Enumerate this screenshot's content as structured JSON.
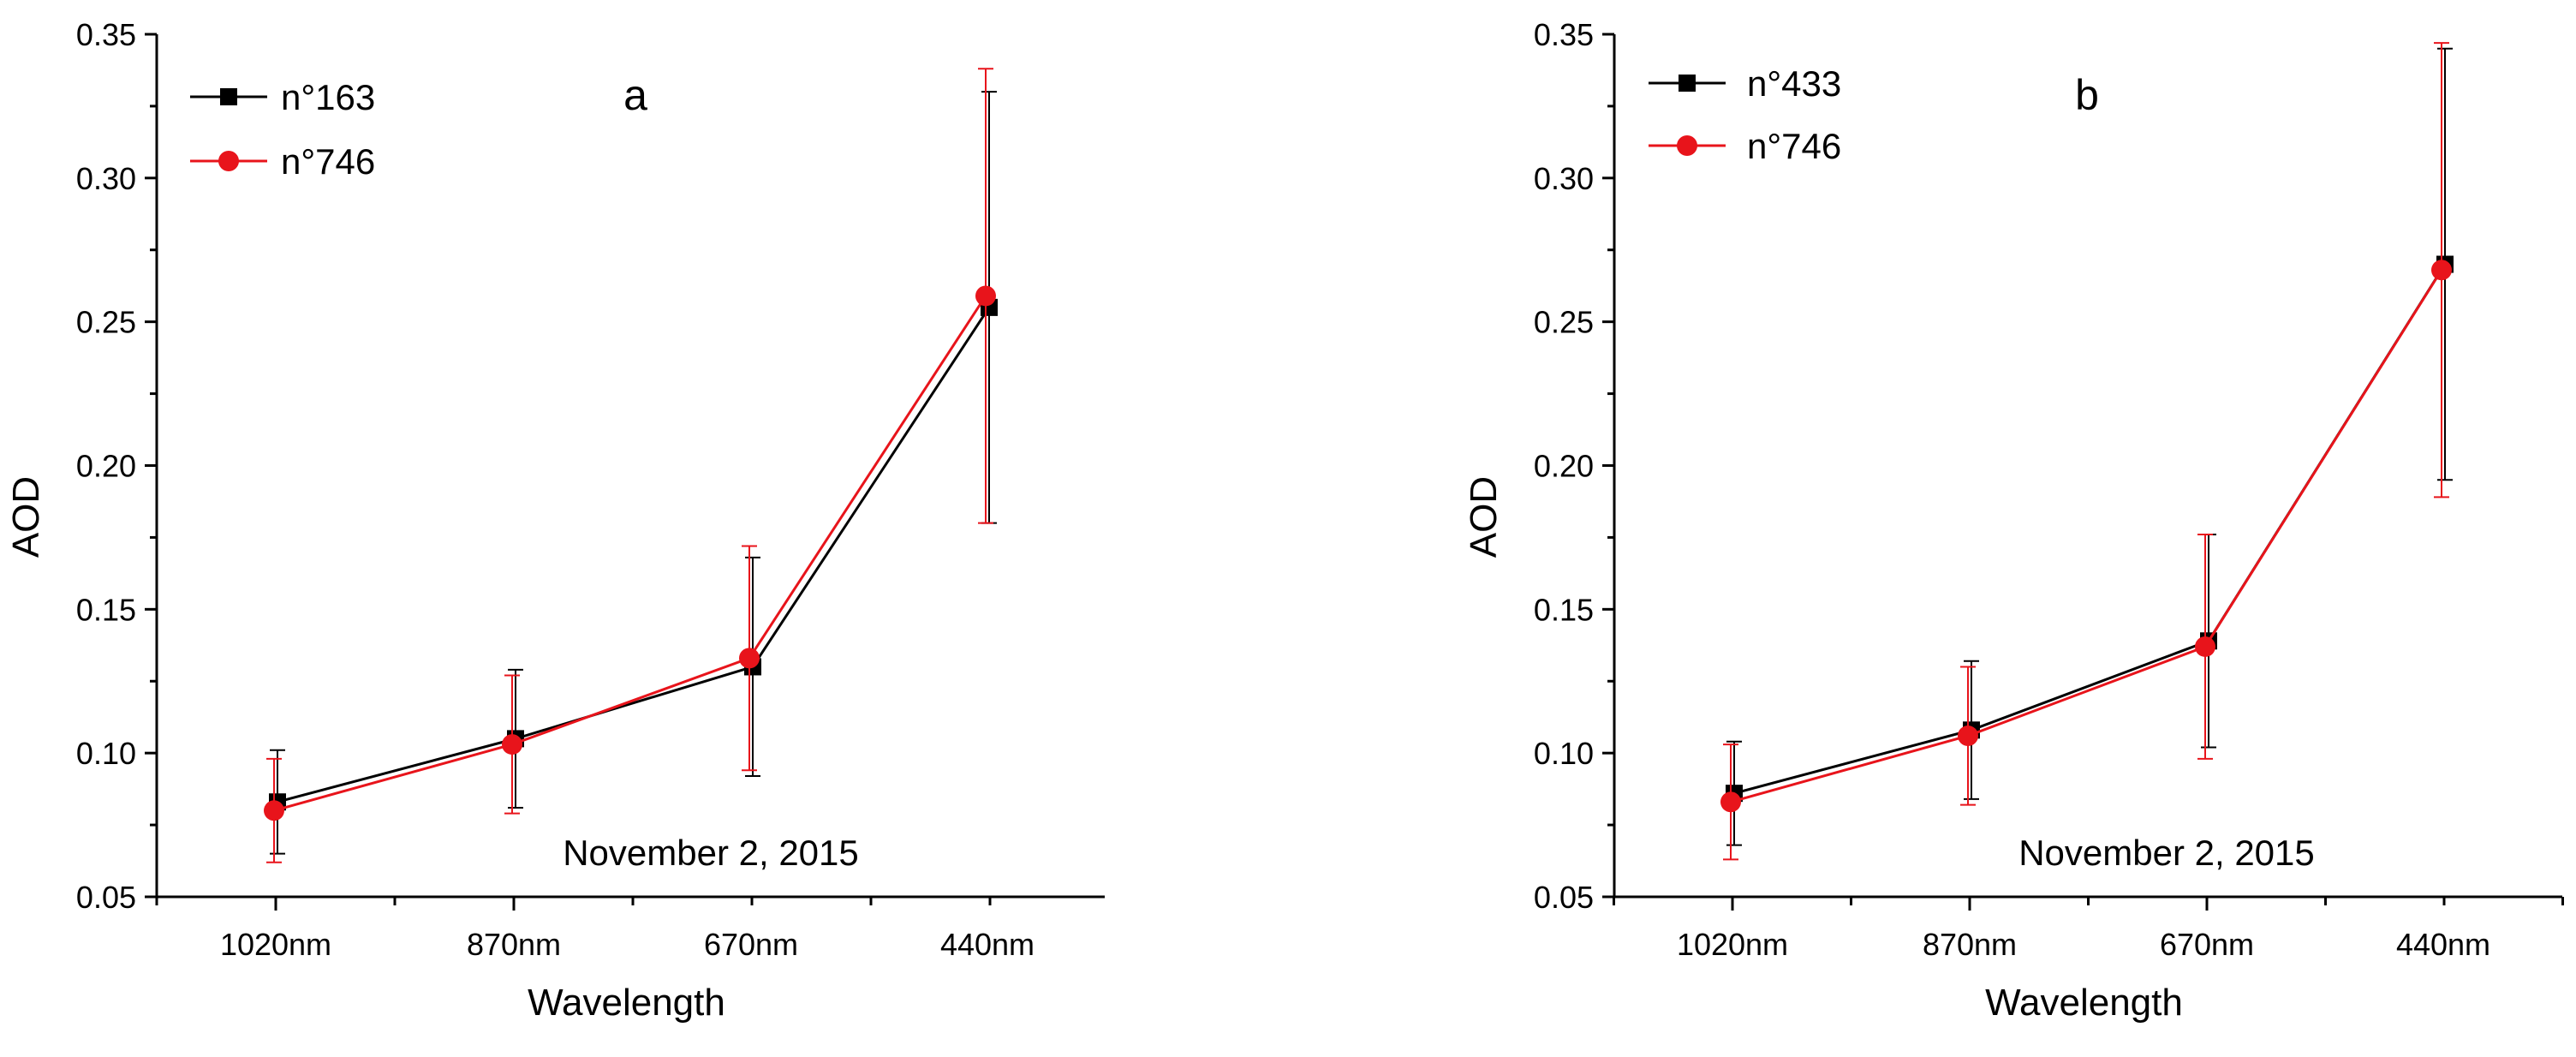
{
  "chart_data": [
    {
      "type": "line",
      "panel_label": "a",
      "annotation": "November 2, 2015",
      "xlabel": "Wavelength",
      "ylabel": "AOD",
      "categories": [
        "1020nm",
        "870nm",
        "670nm",
        "440nm"
      ],
      "ylim": [
        0.05,
        0.35
      ],
      "yticks": [
        "0.05",
        "0.10",
        "0.15",
        "0.20",
        "0.25",
        "0.30",
        "0.35"
      ],
      "legend_position": "top-left",
      "series": [
        {
          "name": "n°163",
          "color": "#000000",
          "marker": "square",
          "values": [
            0.083,
            0.105,
            0.13,
            0.255
          ],
          "error": [
            0.018,
            0.024,
            0.038,
            0.075
          ]
        },
        {
          "name": "n°746",
          "color": "#e8141b",
          "marker": "circle",
          "values": [
            0.08,
            0.103,
            0.133,
            0.259
          ],
          "error": [
            0.018,
            0.024,
            0.039,
            0.079
          ]
        }
      ]
    },
    {
      "type": "line",
      "panel_label": "b",
      "annotation": "November 2, 2015",
      "xlabel": "Wavelength",
      "ylabel": "AOD",
      "categories": [
        "1020nm",
        "870nm",
        "670nm",
        "440nm"
      ],
      "ylim": [
        0.05,
        0.35
      ],
      "yticks": [
        "0.05",
        "0.10",
        "0.15",
        "0.20",
        "0.25",
        "0.30",
        "0.35"
      ],
      "legend_position": "top-left",
      "series": [
        {
          "name": "n°433",
          "color": "#000000",
          "marker": "square",
          "values": [
            0.086,
            0.108,
            0.139,
            0.27
          ],
          "error": [
            0.018,
            0.024,
            0.037,
            0.075
          ]
        },
        {
          "name": "n°746",
          "color": "#e8141b",
          "marker": "circle",
          "values": [
            0.083,
            0.106,
            0.137,
            0.268
          ],
          "error": [
            0.02,
            0.024,
            0.039,
            0.079
          ]
        }
      ]
    }
  ]
}
